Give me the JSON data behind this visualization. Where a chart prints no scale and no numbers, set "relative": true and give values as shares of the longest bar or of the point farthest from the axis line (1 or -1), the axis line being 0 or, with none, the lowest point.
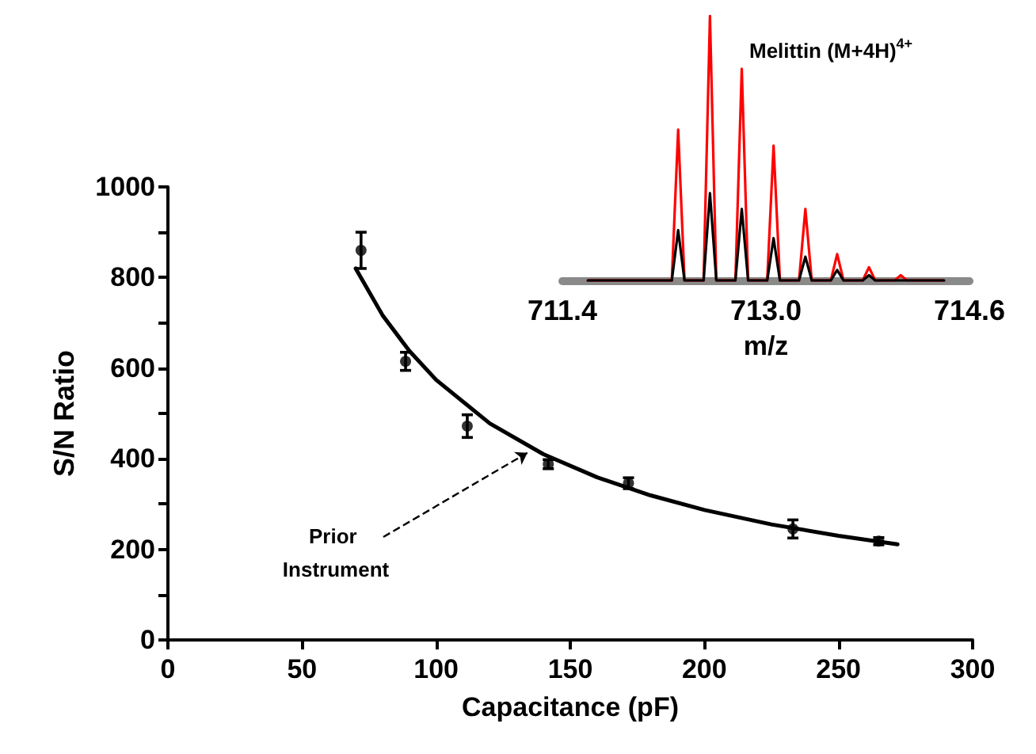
{
  "chart_data": [
    {
      "type": "scatter",
      "xlabel": "Capacitance (pF)",
      "ylabel": "S/N Ratio",
      "xlim": [
        0,
        300
      ],
      "xticks": [
        0,
        50,
        100,
        150,
        200,
        250,
        300
      ],
      "ylim": [
        0,
        1000
      ],
      "yticks": [
        0,
        {
          "value": 100,
          "label": null
        },
        200,
        {
          "value": 300,
          "label": null
        },
        400,
        {
          "value": 500,
          "label": null
        },
        600,
        {
          "value": 700,
          "label": null
        },
        800,
        {
          "value": 900,
          "label": null
        },
        1000
      ],
      "grid": false,
      "annotations": [
        {
          "text": "Prior Instrument",
          "x": 134,
          "y": 413
        }
      ],
      "series": [
        {
          "color": "#000000",
          "marker": "circle",
          "x": [
            72,
            88.6,
            111.6,
            141.8,
            171.7,
            233,
            265
          ],
          "values": [
            860,
            615,
            472,
            388,
            346,
            245,
            218
          ],
          "errors": [
            40,
            20,
            25,
            10,
            12,
            20,
            8
          ]
        },
        {
          "type": "line",
          "color": "#000000",
          "marker": "none",
          "x": [
            70,
            80,
            90,
            100,
            120,
            140,
            160,
            180,
            200,
            225,
            250,
            272
          ],
          "values": [
            820,
            717,
            638,
            574,
            478,
            410,
            359,
            319,
            287,
            255,
            230,
            211
          ]
        }
      ]
    },
    {
      "type": "line",
      "title": "Melittin (M+4H)$^{4+}$",
      "xlabel": "m/z",
      "xlim": [
        711.4,
        714.6
      ],
      "xticks": [
        711.4,
        {
          "value": 713.0,
          "label": "713.0"
        },
        714.6
      ],
      "relative": true,
      "tick_labels": "x",
      "marker": "none",
      "series": [
        {
          "color": "#ff0000",
          "x": [
            711.6,
            712.26,
            712.31,
            712.36,
            712.51,
            712.56,
            712.61,
            712.76,
            712.81,
            712.86,
            713.01,
            713.06,
            713.11,
            713.26,
            713.31,
            713.36,
            713.51,
            713.56,
            713.61,
            713.76,
            713.81,
            713.86,
            714.01,
            714.06,
            714.11,
            714.4
          ],
          "values": [
            0,
            0,
            0.57,
            0,
            0,
            1,
            0,
            0,
            0.8,
            0,
            0,
            0.51,
            0,
            0,
            0.27,
            0,
            0,
            0.1,
            0,
            0,
            0.05,
            0,
            0,
            0.02,
            0,
            0
          ]
        },
        {
          "color": "#000000",
          "x": [
            711.6,
            712.26,
            712.31,
            712.36,
            712.51,
            712.56,
            712.61,
            712.76,
            712.81,
            712.86,
            713.01,
            713.06,
            713.11,
            713.26,
            713.31,
            713.36,
            713.51,
            713.56,
            713.61,
            713.76,
            713.81,
            713.86,
            714.4
          ],
          "values": [
            0,
            0,
            0.19,
            0,
            0,
            0.33,
            0,
            0,
            0.27,
            0,
            0,
            0.16,
            0,
            0,
            0.09,
            0,
            0,
            0.04,
            0,
            0,
            0.02,
            0,
            0
          ]
        }
      ]
    }
  ]
}
